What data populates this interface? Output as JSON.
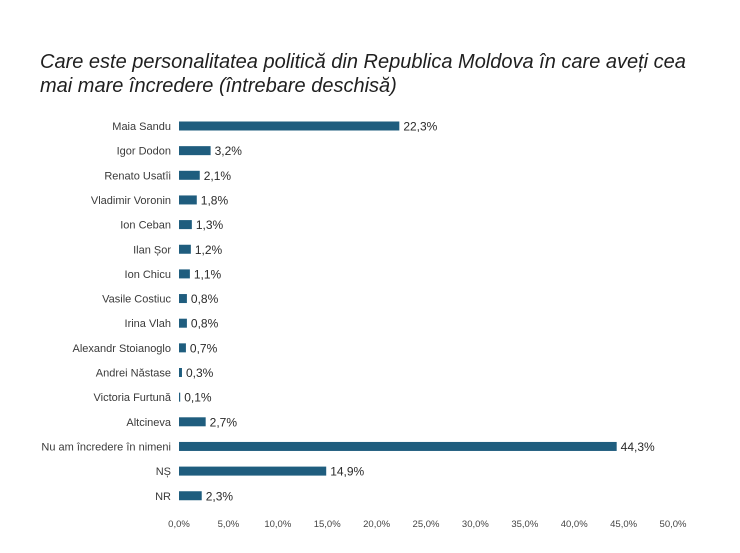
{
  "chart_data": {
    "type": "bar",
    "orientation": "horizontal",
    "title": "Care este personalitatea politică din Republica Moldova în care aveți cea mai mare încredere (întrebare deschisă)",
    "categories": [
      "Maia Sandu",
      "Igor Dodon",
      "Renato Usatîi",
      "Vladimir Voronin",
      "Ion Ceban",
      "Ilan Șor",
      "Ion Chicu",
      "Vasile Costiuc",
      "Irina Vlah",
      "Alexandr Stoianoglo",
      "Andrei Năstase",
      "Victoria Furtună",
      "Altcineva",
      "Nu am încredere în nimeni",
      "NȘ",
      "NR"
    ],
    "values": [
      22.3,
      3.2,
      2.1,
      1.8,
      1.3,
      1.2,
      1.1,
      0.8,
      0.8,
      0.7,
      0.3,
      0.1,
      2.7,
      44.3,
      14.9,
      2.3
    ],
    "value_labels": [
      "22,3%",
      "3,2%",
      "2,1%",
      "1,8%",
      "1,3%",
      "1,2%",
      "1,1%",
      "0,8%",
      "0,8%",
      "0,7%",
      "0,3%",
      "0,1%",
      "2,7%",
      "44,3%",
      "14,9%",
      "2,3%"
    ],
    "xticks": [
      "0,0%",
      "5,0%",
      "10,0%",
      "15,0%",
      "20,0%",
      "25,0%",
      "30,0%",
      "35,0%",
      "40,0%",
      "45,0%",
      "50,0%"
    ],
    "xlim": [
      0,
      50
    ],
    "grid": false,
    "bar_color": "#1f5d7e",
    "xlabel": "",
    "ylabel": ""
  }
}
